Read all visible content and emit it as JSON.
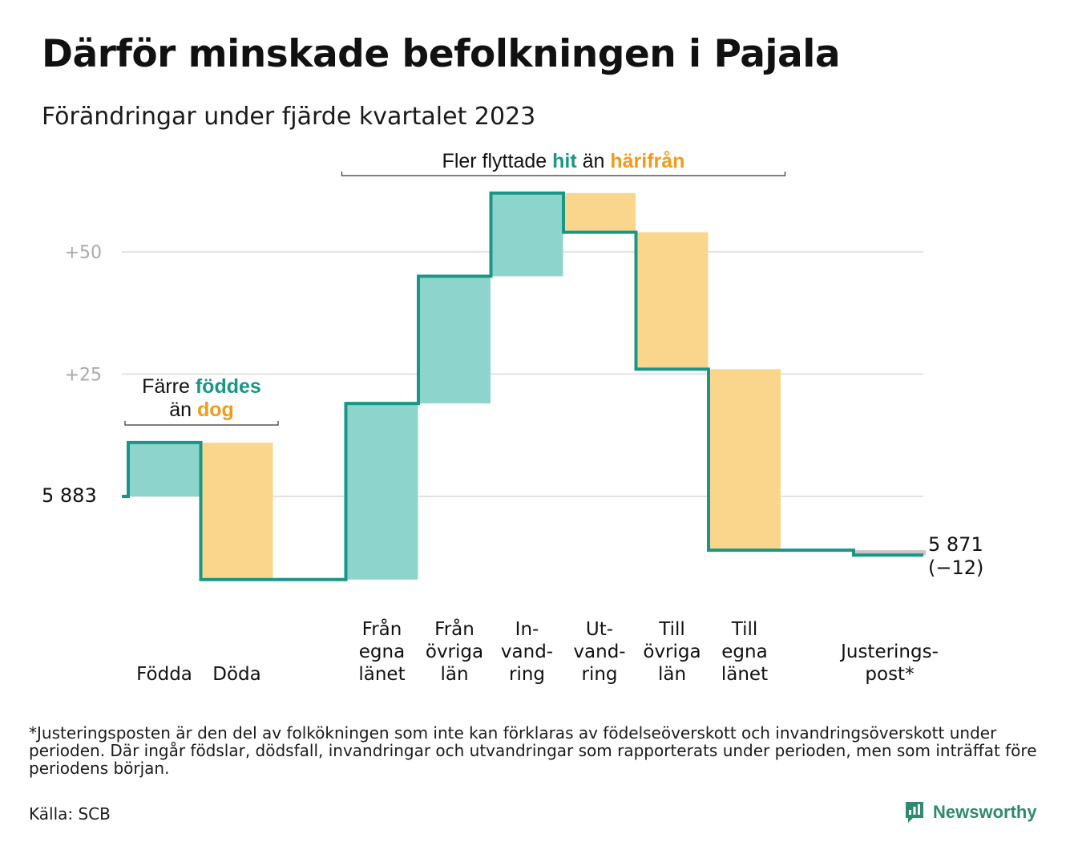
{
  "title": "Därför minskade befolkningen i Pajala",
  "subtitle": "Förändringar under fjärde kvartalet 2023",
  "colors": {
    "inflow": "#8dd5cc",
    "outflow": "#fad68d",
    "line": "#1a9686",
    "orange": "#f29a1c",
    "grid": "#e2e2e2",
    "adjust": "#c8c8c8"
  },
  "chart_data": {
    "type": "waterfall",
    "start_value": 5883,
    "start_label": "5  883",
    "end_value": 5871,
    "end_label": "5 871",
    "end_change_label": "(−12)",
    "y_ticks": [
      {
        "offset": 25,
        "label": "+25"
      },
      {
        "offset": 50,
        "label": "+50"
      }
    ],
    "grid": true,
    "steps": [
      {
        "label_lines": [
          "Födda"
        ],
        "value": 11,
        "kind": "inflow"
      },
      {
        "label_lines": [
          "Döda"
        ],
        "value": -28,
        "kind": "outflow"
      },
      {
        "label_lines": [],
        "value": 0,
        "kind": "gap"
      },
      {
        "label_lines": [
          "Från",
          "egna",
          "länet"
        ],
        "value": 36,
        "kind": "inflow"
      },
      {
        "label_lines": [
          "Från",
          "övriga",
          "län"
        ],
        "value": 26,
        "kind": "inflow"
      },
      {
        "label_lines": [
          "In-",
          "vand-",
          "ring"
        ],
        "value": 17,
        "kind": "inflow"
      },
      {
        "label_lines": [
          "Ut-",
          "vand-",
          "ring"
        ],
        "value": -8,
        "kind": "outflow"
      },
      {
        "label_lines": [
          "Till",
          "övriga",
          "län"
        ],
        "value": -28,
        "kind": "outflow"
      },
      {
        "label_lines": [
          "Till",
          "egna",
          "länet"
        ],
        "value": -37,
        "kind": "outflow"
      },
      {
        "label_lines": [],
        "value": 0,
        "kind": "gap"
      },
      {
        "label_lines": [
          "Justerings-",
          "post*"
        ],
        "value": -1,
        "kind": "adjust"
      }
    ],
    "annotations": {
      "births": {
        "line1_prefix": "Färre",
        "line1_highlight": "föddes",
        "line2_prefix": "än",
        "line2_highlight": "dog"
      },
      "migration": {
        "prefix": "Fler flyttade",
        "highlight1": "hit",
        "middle": "än",
        "highlight2": "härifrån"
      }
    }
  },
  "footnote": "*Justeringsposten är den del av folkökningen som inte kan förklaras av födelseöverskott och invandringsöverskott under perioden. Där ingår födslar, dödsfall, invandringar och utvandringar som rapporterats under perioden, men som inträffat före periodens början.",
  "source": "Källa: SCB",
  "brand": "Newsworthy"
}
